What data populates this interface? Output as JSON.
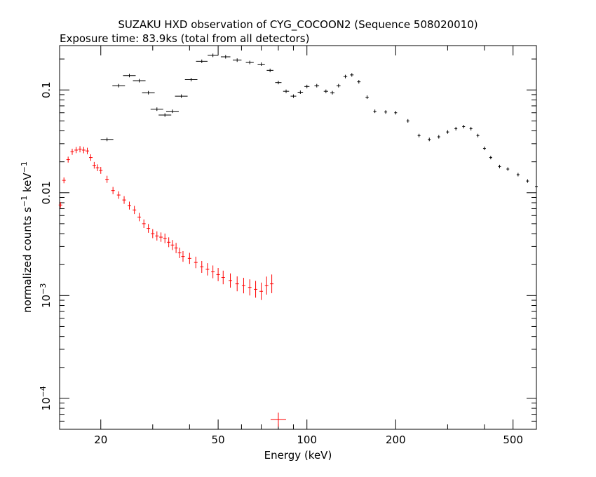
{
  "title": "SUZAKU HXD observation of CYG_COCOON2 (Sequence 508020010)",
  "subtitle": "Exposure time: 83.9ks (total from all detectors)",
  "chart_data": {
    "type": "scatter",
    "title": "SUZAKU HXD observation of CYG_COCOON2 (Sequence 508020010)",
    "subtitle": "Exposure time: 83.9ks (total from all detectors)",
    "xlabel": "Energy (keV)",
    "ylabel_parts": [
      "normalized counts s",
      "−1",
      " keV",
      "−1"
    ],
    "x_scale": "log",
    "y_scale": "log",
    "xlim": [
      14.5,
      600
    ],
    "ylim": [
      5e-05,
      0.27
    ],
    "grid": false,
    "legend": "none",
    "x_ticks": [
      {
        "value": 20,
        "label": "20"
      },
      {
        "value": 50,
        "label": "50"
      },
      {
        "value": 100,
        "label": "100"
      },
      {
        "value": 200,
        "label": "200"
      },
      {
        "value": 500,
        "label": "500"
      }
    ],
    "y_ticks": [
      {
        "value": 0.1,
        "label": "0.1"
      },
      {
        "value": 0.01,
        "label": "0.01"
      },
      {
        "value": 0.001,
        "base": "10",
        "exp": "−3"
      },
      {
        "value": 0.0001,
        "base": "10",
        "exp": "−4"
      }
    ],
    "series": [
      {
        "color": "#000000",
        "points": [
          [
            21.0,
            0.033
          ],
          [
            23.0,
            0.11
          ],
          [
            25.0,
            0.138
          ],
          [
            27.0,
            0.123
          ],
          [
            29.0,
            0.094
          ],
          [
            31.0,
            0.065
          ],
          [
            33.0,
            0.057
          ],
          [
            35.0,
            0.062
          ],
          [
            37.5,
            0.087
          ],
          [
            40.5,
            0.126
          ],
          [
            44.0,
            0.19
          ],
          [
            48.0,
            0.217
          ],
          [
            53.0,
            0.21
          ],
          [
            58.0,
            0.195
          ],
          [
            64.0,
            0.185
          ],
          [
            70.0,
            0.178
          ],
          [
            75.0,
            0.155
          ],
          [
            80.0,
            0.118
          ],
          [
            85.0,
            0.097
          ],
          [
            90.0,
            0.087
          ],
          [
            95.0,
            0.095
          ],
          [
            100.0,
            0.108
          ],
          [
            108.0,
            0.11
          ],
          [
            116.0,
            0.097
          ],
          [
            122.0,
            0.094
          ],
          [
            128.0,
            0.11
          ],
          [
            135.0,
            0.135
          ],
          [
            142.0,
            0.14
          ],
          [
            150.0,
            0.12
          ],
          [
            160.0,
            0.085
          ],
          [
            170.0,
            0.062
          ],
          [
            185.0,
            0.061
          ],
          [
            200.0,
            0.06
          ],
          [
            220.0,
            0.05
          ],
          [
            240.0,
            0.036
          ],
          [
            260.0,
            0.033
          ],
          [
            280.0,
            0.035
          ],
          [
            300.0,
            0.039
          ],
          [
            320.0,
            0.042
          ],
          [
            340.0,
            0.044
          ],
          [
            360.0,
            0.042
          ],
          [
            380.0,
            0.036
          ],
          [
            400.0,
            0.027
          ],
          [
            420.0,
            0.022
          ],
          [
            450.0,
            0.018
          ],
          [
            480.0,
            0.017
          ],
          [
            520.0,
            0.015
          ],
          [
            560.0,
            0.013
          ],
          [
            600.0,
            0.0115
          ]
        ]
      },
      {
        "color": "#ff0000",
        "points": [
          [
            14.6,
            0.0076
          ],
          [
            15.0,
            0.0132
          ],
          [
            15.5,
            0.021
          ],
          [
            16.0,
            0.025
          ],
          [
            16.5,
            0.026
          ],
          [
            17.0,
            0.0265
          ],
          [
            17.5,
            0.026
          ],
          [
            18.0,
            0.0255
          ],
          [
            18.5,
            0.022
          ],
          [
            19.0,
            0.0185
          ],
          [
            19.5,
            0.0175
          ],
          [
            20.0,
            0.0165
          ],
          [
            21.0,
            0.0135
          ],
          [
            22.0,
            0.0105
          ],
          [
            23.0,
            0.0095
          ],
          [
            24.0,
            0.0085
          ],
          [
            25.0,
            0.0075
          ],
          [
            26.0,
            0.0068
          ],
          [
            27.0,
            0.0058
          ],
          [
            28.0,
            0.005
          ],
          [
            29.0,
            0.0045
          ],
          [
            30.0,
            0.004
          ],
          [
            31.0,
            0.0038
          ],
          [
            32.0,
            0.0037
          ],
          [
            33.0,
            0.0036
          ],
          [
            34.0,
            0.0033
          ],
          [
            35.0,
            0.0031
          ],
          [
            36.0,
            0.0029
          ],
          [
            37.0,
            0.0026
          ],
          [
            38.0,
            0.0024
          ],
          [
            40.0,
            0.0023
          ],
          [
            42.0,
            0.0021
          ],
          [
            44.0,
            0.0019
          ],
          [
            46.0,
            0.0018
          ],
          [
            48.0,
            0.0017
          ],
          [
            50.0,
            0.0016
          ],
          [
            52.0,
            0.0015
          ],
          [
            55.0,
            0.0014
          ],
          [
            58.0,
            0.0013
          ],
          [
            61.0,
            0.00125
          ],
          [
            64.0,
            0.0012
          ],
          [
            67.0,
            0.00115
          ],
          [
            70.0,
            0.0011
          ],
          [
            73.0,
            0.00125
          ],
          [
            76.0,
            0.0013
          ],
          [
            80.0,
            6.2e-05
          ]
        ]
      }
    ]
  }
}
